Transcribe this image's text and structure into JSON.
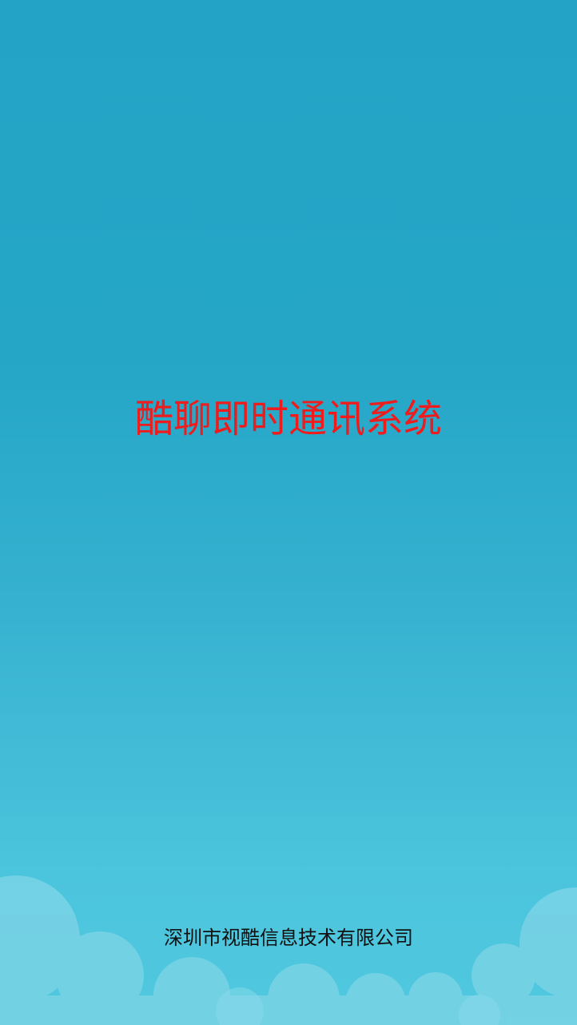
{
  "app_title": "酷聊即时通讯系统",
  "company_name": "深圳市视酷信息技术有限公司",
  "colors": {
    "background_top": "#23a4c6",
    "background_bottom": "#50c8df",
    "title_text": "#ee1c1c",
    "company_text": "#111111",
    "cloud": "#7dd6e8"
  }
}
